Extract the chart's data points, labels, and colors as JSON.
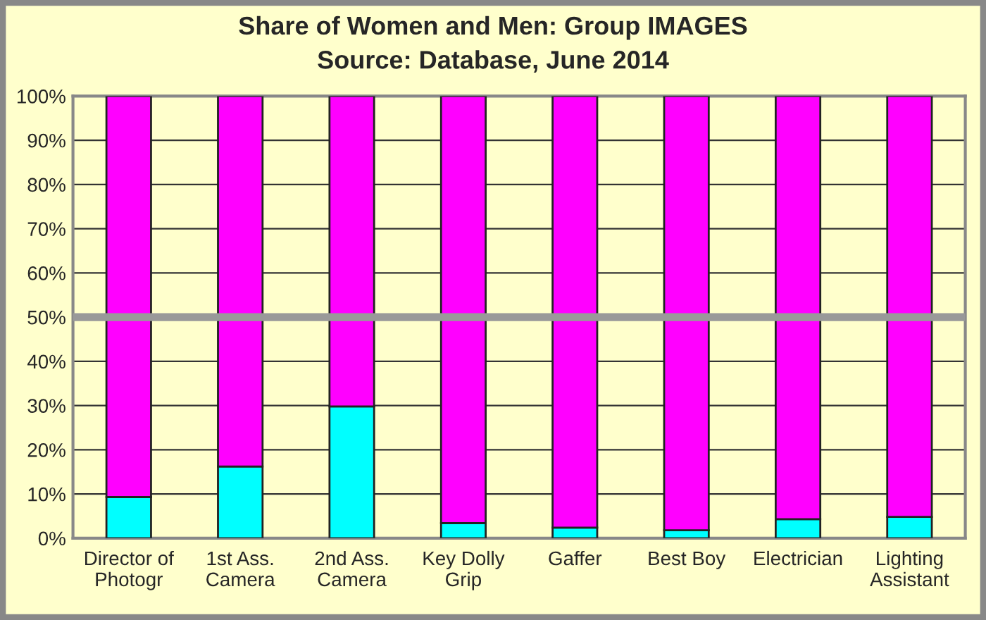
{
  "chart_data": {
    "type": "bar",
    "title": "Share of Women and Men: Group IMAGES",
    "subtitle": "Source: Database, June 2014",
    "categories": [
      "Director of\nPhotogr",
      "1st Ass.\nCamera",
      "2nd Ass.\nCamera",
      "Key Dolly\nGrip",
      "Gaffer",
      "Best Boy",
      "Electrician",
      "Lighting\nAssistant"
    ],
    "stacked": true,
    "series": [
      {
        "color": "#00ffff",
        "values": [
          9.3,
          16.2,
          29.8,
          3.4,
          2.4,
          1.8,
          4.3,
          4.8
        ]
      },
      {
        "color": "#ff00ff",
        "values": [
          90.7,
          83.8,
          70.2,
          96.6,
          97.6,
          98.2,
          95.7,
          95.2
        ]
      }
    ],
    "ylim": [
      0,
      100
    ],
    "yticks": [
      {
        "value": 0,
        "label": "0%"
      },
      {
        "value": 10,
        "label": "10%"
      },
      {
        "value": 20,
        "label": "20%"
      },
      {
        "value": 30,
        "label": "30%"
      },
      {
        "value": 40,
        "label": "40%"
      },
      {
        "value": 50,
        "label": "50%"
      },
      {
        "value": 60,
        "label": "60%"
      },
      {
        "value": 70,
        "label": "70%"
      },
      {
        "value": 80,
        "label": "80%"
      },
      {
        "value": 90,
        "label": "90%"
      },
      {
        "value": 100,
        "label": "100%"
      }
    ],
    "grid": "y",
    "ref_lines": [
      {
        "axis": "y",
        "value": 50,
        "color": "#999999"
      }
    ]
  }
}
